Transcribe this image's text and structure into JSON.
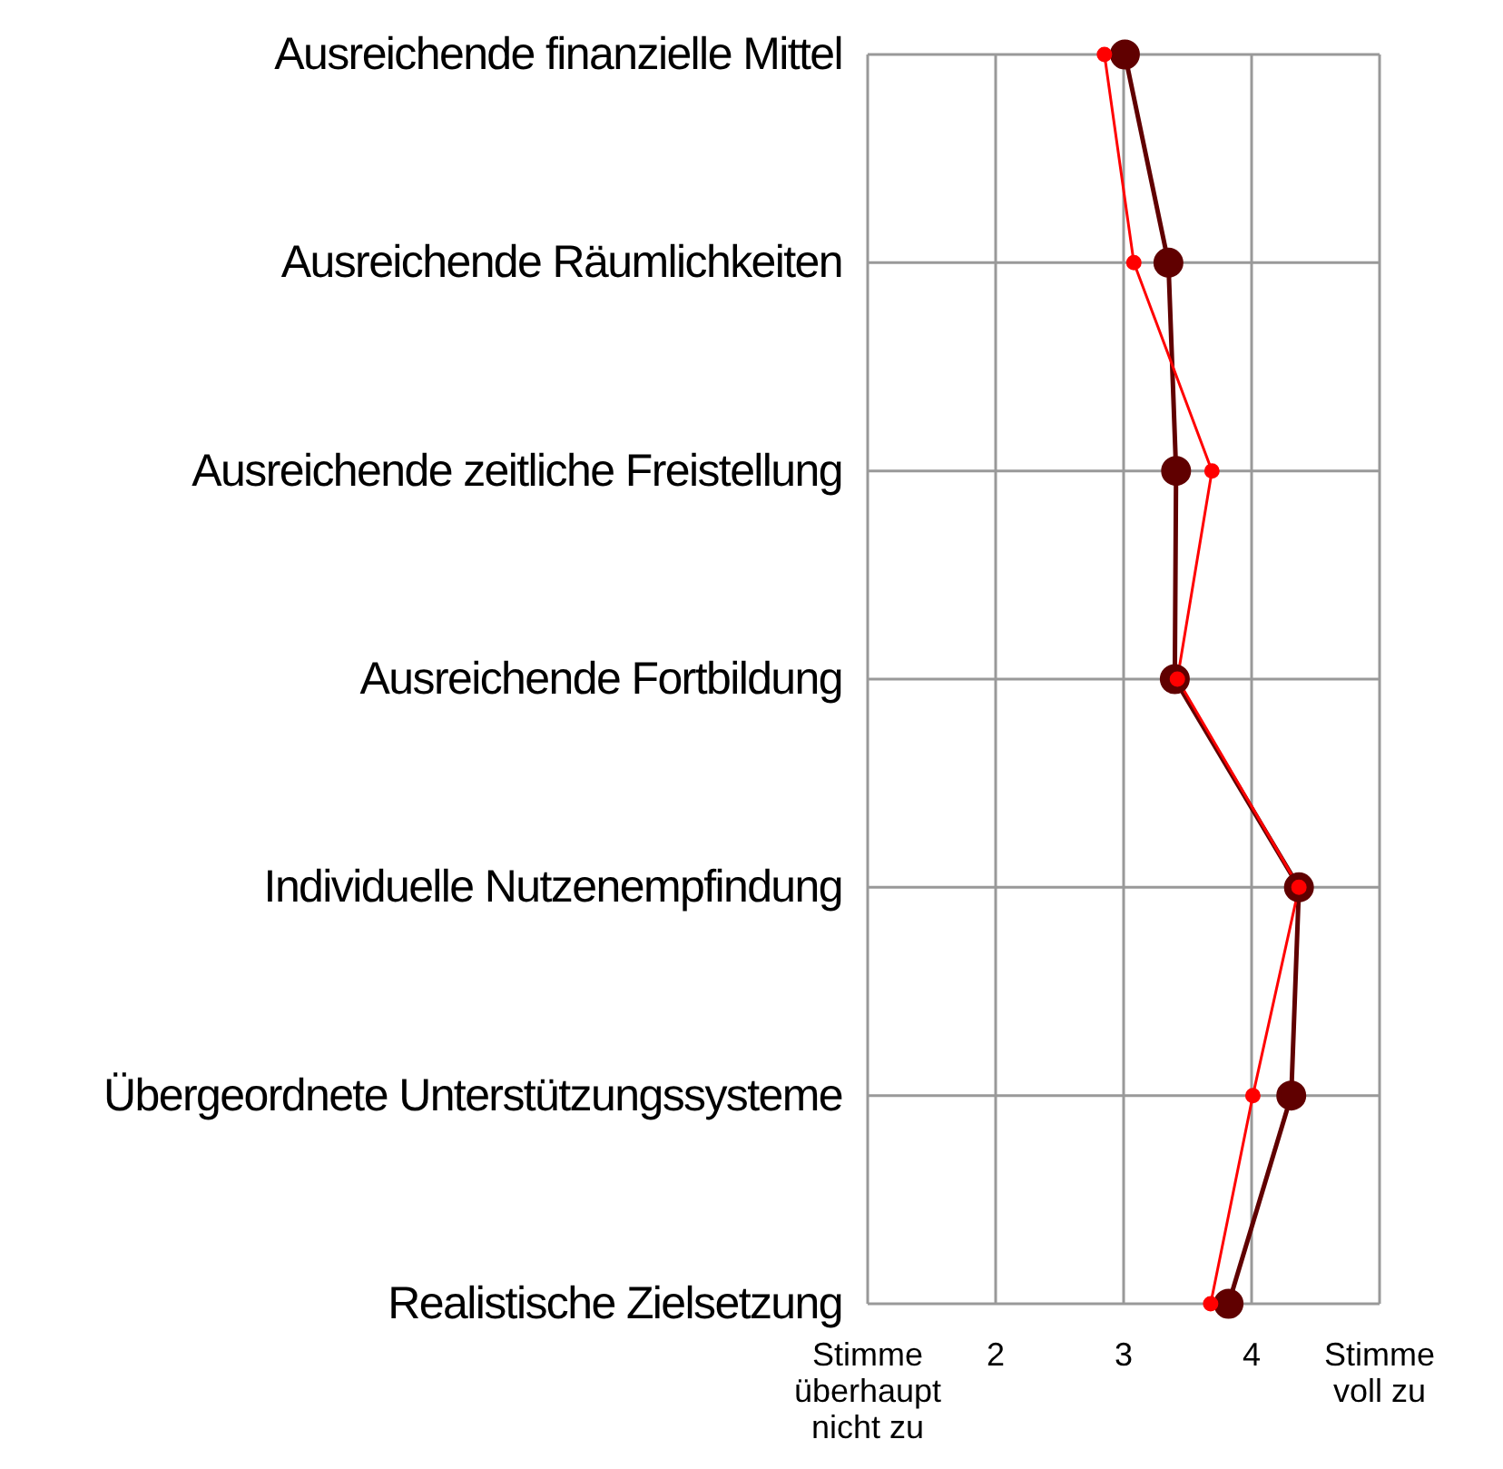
{
  "chart_data": {
    "type": "line",
    "categories": [
      "Ausreichende finanzielle Mittel",
      "Ausreichende Räumlichkeiten",
      "Ausreichende zeitliche Freistellung",
      "Ausreichende Fortbildung",
      "Individuelle Nutzenempfindung",
      "Übergeordnete Unterstützungssysteme",
      "Realistische Zielsetzung"
    ],
    "orientation": "horizontal",
    "xlim": [
      1,
      5
    ],
    "xticks": [
      {
        "value": 1,
        "label": "Stimme überhaupt nicht zu"
      },
      2,
      3,
      4,
      {
        "value": 5,
        "label": "Stimme voll zu"
      }
    ],
    "grid": true,
    "legend": false,
    "marker": "circle",
    "line_style": "solid",
    "series": [
      {
        "color": "#ff0000",
        "values": [
          2.85,
          3.08,
          3.69,
          3.42,
          4.37,
          4.01,
          3.68
        ]
      },
      {
        "color": "#600000",
        "values": [
          3.01,
          3.35,
          3.41,
          3.4,
          4.37,
          4.31,
          3.82
        ]
      }
    ]
  }
}
